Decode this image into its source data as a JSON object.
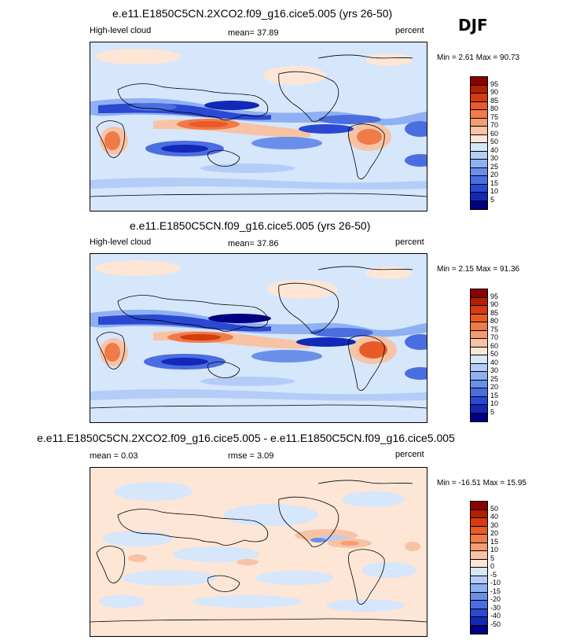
{
  "season": "DJF",
  "panels": [
    {
      "title": "e.e11.E1850C5CN.2XCO2.f09_g16.cice5.005 (yrs 26-50)",
      "left_label": "High-level cloud",
      "center_label": "mean=  37.89",
      "right_label": "percent",
      "minmax": "Min =   2.61 Max =  90.73",
      "colorbar": {
        "labels": [
          "95",
          "90",
          "85",
          "80",
          "75",
          "70",
          "60",
          "50",
          "40",
          "30",
          "25",
          "20",
          "15",
          "10",
          "5"
        ],
        "colors": [
          "#8b0000",
          "#b22000",
          "#d43d10",
          "#e85a28",
          "#f07a48",
          "#f59c74",
          "#f8c3a4",
          "#fde6d6",
          "#d6e6fb",
          "#b3cdf7",
          "#8fb0f2",
          "#6a8fea",
          "#4a6de0",
          "#2a48d2",
          "#1228b8",
          "#000080"
        ]
      }
    },
    {
      "title": "e.e11.E1850C5CN.f09_g16.cice5.005 (yrs 26-50)",
      "left_label": "High-level cloud",
      "center_label": "mean=  37.86",
      "right_label": "percent",
      "minmax": "Min =   2.15 Max =  91.36",
      "colorbar": {
        "labels": [
          "95",
          "90",
          "85",
          "80",
          "75",
          "70",
          "60",
          "50",
          "40",
          "30",
          "25",
          "20",
          "15",
          "10",
          "5"
        ],
        "colors": [
          "#8b0000",
          "#b22000",
          "#d43d10",
          "#e85a28",
          "#f07a48",
          "#f59c74",
          "#f8c3a4",
          "#fde6d6",
          "#d6e6fb",
          "#b3cdf7",
          "#8fb0f2",
          "#6a8fea",
          "#4a6de0",
          "#2a48d2",
          "#1228b8",
          "#000080"
        ]
      }
    },
    {
      "title": "e.e11.E1850C5CN.2XCO2.f09_g16.cice5.005 - e.e11.E1850C5CN.f09_g16.cice5.005",
      "left_label": "mean =   0.03",
      "center_label": "rmse =   3.09",
      "right_label": "percent",
      "minmax": "Min = -16.51 Max =  15.95",
      "colorbar": {
        "labels": [
          "50",
          "40",
          "30",
          "20",
          "15",
          "10",
          "5",
          "0",
          "-5",
          "-10",
          "-15",
          "-20",
          "-30",
          "-40",
          "-50"
        ],
        "colors": [
          "#8b0000",
          "#b22000",
          "#d43d10",
          "#e85a28",
          "#f07a48",
          "#f59c74",
          "#f8c3a4",
          "#fde6d6",
          "#d6e6fb",
          "#b3cdf7",
          "#8fb0f2",
          "#6a8fea",
          "#4a6de0",
          "#2a48d2",
          "#1228b8",
          "#000080"
        ]
      }
    }
  ]
}
